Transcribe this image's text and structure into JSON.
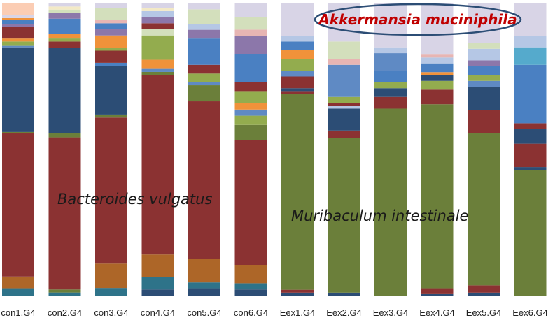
{
  "chart_data": {
    "type": "bar",
    "stacked": true,
    "normalized": true,
    "ylim": [
      0,
      100
    ],
    "grid": false,
    "legend": "none",
    "categories": [
      "con1.G4",
      "con2.G4",
      "con3.G4",
      "con4.G4",
      "con5.G4",
      "con6.G4",
      "Eex1.G4",
      "Eex2.G4",
      "Eex3.G4",
      "Eex4.G4",
      "Eex5.G4",
      "Eex6.G4"
    ],
    "palette": {
      "teal": "#2e7389",
      "navy": "#2c4d75",
      "dark_red": "#8b3232",
      "brown_orange": "#ad6628",
      "olive_green": "#6b7f3a",
      "light_green": "#93ac4e",
      "dark_blue": "#3b5e8e",
      "steel_blue": "#4a80c2",
      "mid_blue": "#5f8ac4",
      "orange": "#f0923a",
      "purple": "#8c77aa",
      "cyan": "#55aacc",
      "lavender": "#d8d4e6",
      "pale_green": "#d3dfbc",
      "peach": "#fbcdb4",
      "light_blue": "#b5c7e5",
      "pink": "#e7b5b3",
      "cream": "#f3e9c6",
      "grey": "#c8c8d2"
    },
    "stacks": [
      [
        [
          "teal",
          2.5
        ],
        [
          "brown_orange",
          4
        ],
        [
          "dark_red",
          49
        ],
        [
          "olive_green",
          0.5
        ],
        [
          "navy",
          29
        ],
        [
          "mid_blue",
          0.5
        ],
        [
          "light_green",
          1.5
        ],
        [
          "orange",
          1
        ],
        [
          "dark_red",
          4
        ],
        [
          "purple",
          1
        ],
        [
          "steel_blue",
          1.5
        ],
        [
          "orange",
          0.5
        ],
        [
          "lavender",
          1
        ],
        [
          "peach",
          4
        ]
      ],
      [
        [
          "teal",
          1
        ],
        [
          "olive_green",
          1
        ],
        [
          "dark_red",
          50
        ],
        [
          "olive_green",
          1.5
        ],
        [
          "navy",
          28
        ],
        [
          "dark_red",
          2
        ],
        [
          "light_green",
          1
        ],
        [
          "orange",
          1.5
        ],
        [
          "steel_blue",
          5
        ],
        [
          "purple",
          2
        ],
        [
          "pale_green",
          1
        ],
        [
          "cream",
          1
        ],
        [
          "lavender",
          1
        ]
      ],
      [
        [
          "teal",
          2.5
        ],
        [
          "brown_orange",
          8
        ],
        [
          "dark_red",
          48
        ],
        [
          "olive_green",
          1
        ],
        [
          "navy",
          16
        ],
        [
          "steel_blue",
          1
        ],
        [
          "dark_red",
          4
        ],
        [
          "light_green",
          1
        ],
        [
          "orange",
          4
        ],
        [
          "purple",
          2
        ],
        [
          "steel_blue",
          2
        ],
        [
          "pink",
          1
        ],
        [
          "pale_green",
          4
        ],
        [
          "lavender",
          1.5
        ]
      ],
      [
        [
          "navy",
          2
        ],
        [
          "teal",
          4
        ],
        [
          "brown_orange",
          7.5
        ],
        [
          "dark_red",
          59
        ],
        [
          "olive_green",
          1
        ],
        [
          "mid_blue",
          1
        ],
        [
          "orange",
          3
        ],
        [
          "light_green",
          8
        ],
        [
          "pale_green",
          2
        ],
        [
          "dark_red",
          2
        ],
        [
          "purple",
          2
        ],
        [
          "light_blue",
          2
        ],
        [
          "cream",
          1
        ],
        [
          "lavender",
          1.5
        ]
      ],
      [
        [
          "navy",
          2.5
        ],
        [
          "teal",
          2
        ],
        [
          "brown_orange",
          8
        ],
        [
          "dark_red",
          54
        ],
        [
          "olive_green",
          5.5
        ],
        [
          "mid_blue",
          1
        ],
        [
          "light_green",
          3
        ],
        [
          "dark_red",
          3
        ],
        [
          "steel_blue",
          9
        ],
        [
          "purple",
          3
        ],
        [
          "light_blue",
          2
        ],
        [
          "pale_green",
          5
        ],
        [
          "lavender",
          2
        ]
      ],
      [
        [
          "navy",
          2
        ],
        [
          "teal",
          2
        ],
        [
          "brown_orange",
          6
        ],
        [
          "dark_red",
          40.5
        ],
        [
          "olive_green",
          5
        ],
        [
          "light_green",
          3
        ],
        [
          "mid_blue",
          2
        ],
        [
          "orange",
          2
        ],
        [
          "light_green",
          4
        ],
        [
          "dark_red",
          3
        ],
        [
          "steel_blue",
          9
        ],
        [
          "purple",
          6
        ],
        [
          "pink",
          2
        ],
        [
          "pale_green",
          4
        ],
        [
          "lavender",
          4.5
        ]
      ],
      [
        [
          "navy",
          1
        ],
        [
          "dark_red",
          1
        ],
        [
          "olive_green",
          67
        ],
        [
          "dark_red",
          1
        ],
        [
          "navy",
          1
        ],
        [
          "dark_red",
          4
        ],
        [
          "mid_blue",
          2
        ],
        [
          "light_green",
          4
        ],
        [
          "orange",
          3
        ],
        [
          "steel_blue",
          3
        ],
        [
          "light_blue",
          2
        ],
        [
          "lavender",
          11
        ]
      ],
      [
        [
          "navy",
          1
        ],
        [
          "olive_green",
          53
        ],
        [
          "dark_red",
          2.5
        ],
        [
          "navy",
          7.5
        ],
        [
          "light_blue",
          1
        ],
        [
          "dark_red",
          1
        ],
        [
          "light_green",
          2
        ],
        [
          "mid_blue",
          11
        ],
        [
          "pink",
          2
        ],
        [
          "pale_green",
          6
        ],
        [
          "lavender",
          13
        ]
      ],
      [
        [
          "olive_green",
          64
        ],
        [
          "dark_red",
          4
        ],
        [
          "navy",
          3
        ],
        [
          "light_green",
          2
        ],
        [
          "steel_blue",
          4
        ],
        [
          "mid_blue",
          6
        ],
        [
          "light_blue",
          2
        ],
        [
          "lavender",
          15
        ]
      ],
      [
        [
          "navy",
          0.5
        ],
        [
          "dark_red",
          2
        ],
        [
          "olive_green",
          63
        ],
        [
          "dark_red",
          5
        ],
        [
          "light_green",
          3
        ],
        [
          "navy",
          2
        ],
        [
          "orange",
          1
        ],
        [
          "steel_blue",
          3
        ],
        [
          "light_blue",
          2
        ],
        [
          "pink",
          1
        ],
        [
          "lavender",
          17.5
        ]
      ],
      [
        [
          "navy",
          1
        ],
        [
          "dark_red",
          2.5
        ],
        [
          "olive_green",
          52
        ],
        [
          "dark_red",
          8
        ],
        [
          "navy",
          8
        ],
        [
          "mid_blue",
          2
        ],
        [
          "light_green",
          2
        ],
        [
          "steel_blue",
          3
        ],
        [
          "purple",
          2
        ],
        [
          "light_blue",
          4
        ],
        [
          "pale_green",
          2
        ],
        [
          "lavender",
          13.5
        ]
      ],
      [
        [
          "olive_green",
          43
        ],
        [
          "navy",
          1
        ],
        [
          "dark_red",
          8
        ],
        [
          "navy",
          5
        ],
        [
          "dark_red",
          2
        ],
        [
          "steel_blue",
          20
        ],
        [
          "cyan",
          6
        ],
        [
          "light_blue",
          4
        ],
        [
          "lavender",
          11
        ]
      ]
    ],
    "annotations": [
      {
        "text": "Bacteroides vulgatus",
        "style": "italic"
      },
      {
        "text": "Muribaculum intestinale",
        "style": "italic"
      },
      {
        "text": "Akkermansia muciniphila",
        "style": "italic-bold-red",
        "enclosed": "ellipse"
      }
    ]
  }
}
